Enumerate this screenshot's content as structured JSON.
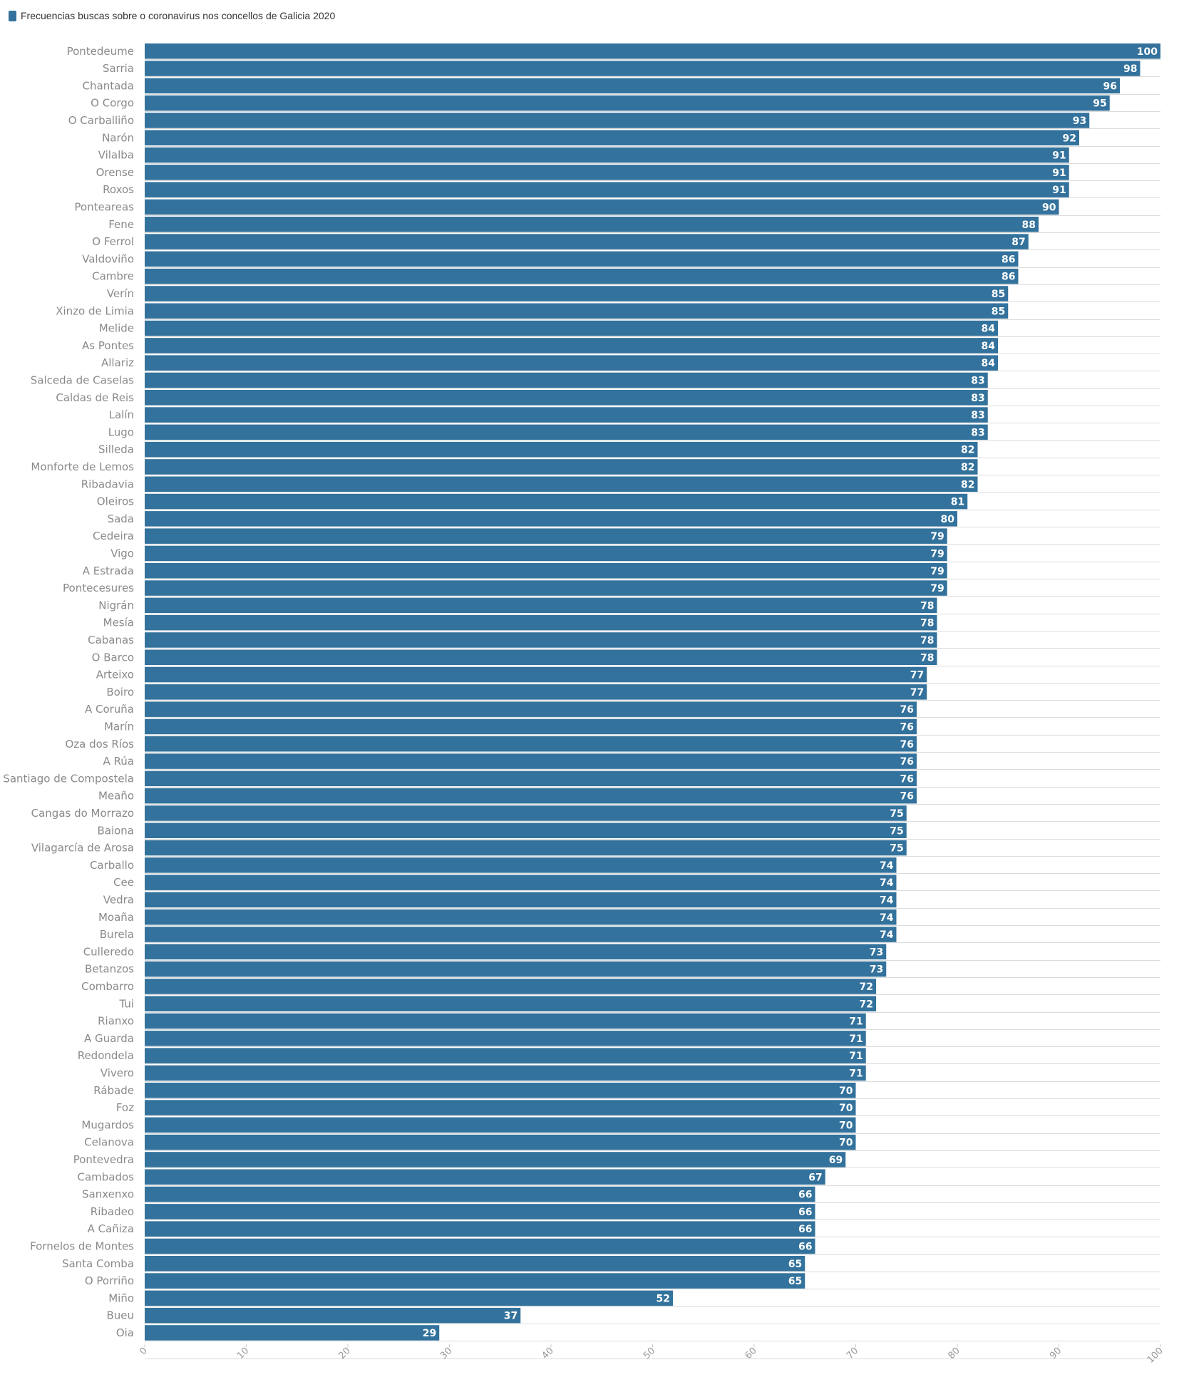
{
  "chart_data": {
    "type": "bar",
    "orientation": "horizontal",
    "series": [
      {
        "name": "Frecuencias buscas sobre o coronavirus nos concellos de Galicia 2020",
        "color": "#33729c",
        "values": [
          100,
          98,
          96,
          95,
          93,
          92,
          91,
          91,
          91,
          90,
          88,
          87,
          86,
          86,
          85,
          85,
          84,
          84,
          84,
          83,
          83,
          83,
          83,
          82,
          82,
          82,
          81,
          80,
          79,
          79,
          79,
          79,
          78,
          78,
          78,
          78,
          77,
          77,
          76,
          76,
          76,
          76,
          76,
          76,
          75,
          75,
          75,
          74,
          74,
          74,
          74,
          74,
          73,
          73,
          72,
          72,
          71,
          71,
          71,
          71,
          70,
          70,
          70,
          70,
          69,
          67,
          66,
          66,
          66,
          66,
          65,
          65,
          52,
          37,
          29
        ]
      }
    ],
    "categories": [
      "Pontedeume",
      "Sarria",
      "Chantada",
      "O Corgo",
      "O Carballiño",
      "Narón",
      "Vilalba",
      "Orense",
      "Roxos",
      "Ponteareas",
      "Fene",
      "O Ferrol",
      "Valdoviño",
      "Cambre",
      "Verín",
      "Xinzo de Limia",
      "Melide",
      "As Pontes",
      "Allariz",
      "Salceda de Caselas",
      "Caldas de Reis",
      "Lalín",
      "Lugo",
      "Silleda",
      "Monforte de Lemos",
      "Ribadavia",
      "Oleiros",
      "Sada",
      "Cedeira",
      "Vigo",
      "A Estrada",
      "Pontecesures",
      "Nigrán",
      "Mesía",
      "Cabanas",
      "O Barco",
      "Arteixo",
      "Boiro",
      "A Coruña",
      "Marín",
      "Oza dos Ríos",
      "A Rúa",
      "Santiago de Compostela",
      "Meaño",
      "Cangas do Morrazo",
      "Baiona",
      "Vilagarcía de Arosa",
      "Carballo",
      "Cee",
      "Vedra",
      "Moaña",
      "Burela",
      "Culleredo",
      "Betanzos",
      "Combarro",
      "Tui",
      "Rianxo",
      "A Guarda",
      "Redondela",
      "Vivero",
      "Rábade",
      "Foz",
      "Mugardos",
      "Celanova",
      "Pontevedra",
      "Cambados",
      "Sanxenxo",
      "Ribadeo",
      "A Cañiza",
      "Fornelos de Montes",
      "Santa Comba",
      "O Porriño",
      "Miño",
      "Bueu",
      "Oia"
    ],
    "xlim": [
      0,
      100
    ],
    "xticks": [
      "0",
      "10",
      "20",
      "30",
      "40",
      "50",
      "60",
      "70",
      "80",
      "90",
      "100"
    ],
    "grid": true,
    "legend": "top-left",
    "bar_color": "#33729c"
  }
}
